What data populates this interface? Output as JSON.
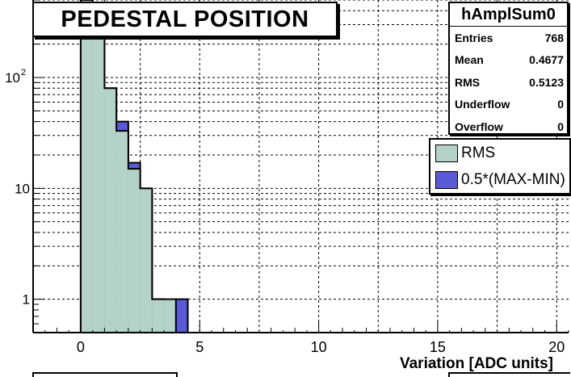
{
  "chart_data": {
    "type": "bar",
    "title": "PEDESTAL POSITION",
    "xlabel": "Variation [ADC units]",
    "ylabel": "",
    "xlim": [
      -2,
      20.5
    ],
    "ylim": [
      0.5,
      500
    ],
    "ylog": true,
    "grid": true,
    "x_ticks": [
      "0",
      "5",
      "10",
      "15",
      "20"
    ],
    "y_ticks": [
      "1",
      "10",
      "10^2"
    ],
    "bin_edges": [
      0,
      0.5,
      1,
      1.5,
      2,
      2.5,
      3,
      3.5,
      4,
      4.5
    ],
    "series": [
      {
        "name": "RMS",
        "color": "#b4d2c8",
        "values": [
          500,
          240,
          80,
          33,
          15,
          10,
          1,
          1,
          0
        ]
      },
      {
        "name": "0.5*(MAX-MIN)",
        "color": "#5a5ad7",
        "values": [
          500,
          240,
          80,
          40,
          17,
          10,
          1,
          0,
          1
        ]
      }
    ]
  },
  "stats_box": {
    "name": "hAmplSum0",
    "rows": [
      {
        "label": "Entries",
        "value": "768"
      },
      {
        "label": "Mean",
        "value": "0.4677"
      },
      {
        "label": "RMS",
        "value": "0.5123"
      },
      {
        "label": "Underflow",
        "value": "0"
      },
      {
        "label": "Overflow",
        "value": "0"
      }
    ]
  }
}
